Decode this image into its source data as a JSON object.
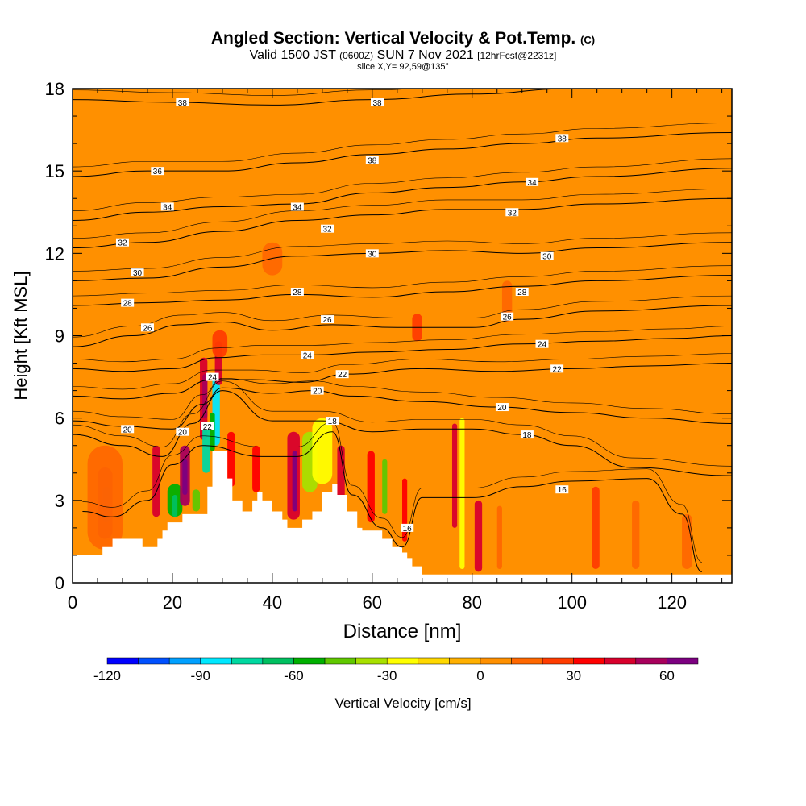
{
  "header": {
    "title": "Angled Section: Vertical Velocity & Pot.Temp.",
    "title_unit": "(C)",
    "subtitle_prefix": "Valid 1500 JST",
    "subtitle_utc": "(0600Z)",
    "subtitle_date": "SUN 7 Nov 2021",
    "subtitle_fcst": "[12hrFcst@2231z]",
    "slice": "slice X,Y= 92,59@135°"
  },
  "chart_data": {
    "type": "heatmap",
    "xlabel": "Distance [nm]",
    "ylabel": "Height [Kft MSL]",
    "xlim": [
      0,
      132
    ],
    "ylim": [
      0,
      18
    ],
    "x_ticks": [
      0,
      20,
      40,
      60,
      80,
      100,
      120
    ],
    "y_ticks": [
      0,
      3,
      6,
      9,
      12,
      15,
      18
    ],
    "terrain": [
      [
        0,
        1
      ],
      [
        5,
        1
      ],
      [
        6,
        1.3
      ],
      [
        8,
        1.6
      ],
      [
        13,
        1.6
      ],
      [
        14,
        1.3
      ],
      [
        16,
        1.3
      ],
      [
        17,
        1.6
      ],
      [
        18,
        1.9
      ],
      [
        19,
        2.2
      ],
      [
        21,
        2.2
      ],
      [
        22,
        2.5
      ],
      [
        26,
        2.5
      ],
      [
        27,
        3.5
      ],
      [
        28,
        4.8
      ],
      [
        30,
        4.8
      ],
      [
        31,
        3.8
      ],
      [
        32,
        3.0
      ],
      [
        34,
        2.6
      ],
      [
        36,
        3.0
      ],
      [
        37,
        3.3
      ],
      [
        38,
        3.0
      ],
      [
        40,
        2.6
      ],
      [
        42,
        2.3
      ],
      [
        43,
        2.0
      ],
      [
        45,
        2.0
      ],
      [
        46,
        2.3
      ],
      [
        48,
        2.6
      ],
      [
        50,
        3.3
      ],
      [
        52,
        3.6
      ],
      [
        53,
        3.2
      ],
      [
        55,
        2.6
      ],
      [
        57,
        2.0
      ],
      [
        58,
        1.9
      ],
      [
        61,
        1.9
      ],
      [
        62,
        1.6
      ],
      [
        64,
        1.3
      ],
      [
        66,
        1.1
      ],
      [
        67,
        0.9
      ],
      [
        68,
        0.6
      ],
      [
        70,
        0.3
      ],
      [
        72,
        0.3
      ],
      [
        132,
        0.3
      ]
    ],
    "contour_label": "Pot.Temp.",
    "contours": [
      {
        "level": 16,
        "points": [
          [
            2,
            2.6
          ],
          [
            8,
            2.4
          ],
          [
            15,
            3.0
          ],
          [
            20,
            4.3
          ],
          [
            26,
            5.0
          ],
          [
            38,
            4.6
          ],
          [
            45,
            4.6
          ],
          [
            52,
            5.5
          ],
          [
            56,
            3.2
          ],
          [
            62,
            2.0
          ],
          [
            66,
            1.3
          ],
          [
            70,
            3.1
          ],
          [
            80,
            3.1
          ],
          [
            90,
            3.5
          ],
          [
            100,
            3.7
          ],
          [
            115,
            3.8
          ],
          [
            122,
            2.5
          ],
          [
            126,
            0.4
          ]
        ]
      },
      {
        "level": 18,
        "points": [
          [
            0,
            5.4
          ],
          [
            10,
            5.0
          ],
          [
            18,
            4.6
          ],
          [
            24,
            5.8
          ],
          [
            30,
            7.0
          ],
          [
            40,
            5.9
          ],
          [
            50,
            5.9
          ],
          [
            60,
            5.5
          ],
          [
            70,
            5.6
          ],
          [
            80,
            5.6
          ],
          [
            90,
            5.4
          ],
          [
            100,
            5.0
          ],
          [
            112,
            4.2
          ],
          [
            132,
            3.9
          ]
        ]
      },
      {
        "level": 20,
        "points": [
          [
            0,
            5.9
          ],
          [
            10,
            5.7
          ],
          [
            20,
            5.6
          ],
          [
            26,
            6.5
          ],
          [
            30,
            7.1
          ],
          [
            40,
            6.9
          ],
          [
            48,
            7.0
          ],
          [
            56,
            6.8
          ],
          [
            70,
            6.6
          ],
          [
            85,
            6.4
          ],
          [
            100,
            6.2
          ],
          [
            115,
            6.0
          ],
          [
            132,
            5.8
          ]
        ]
      },
      {
        "level": 22,
        "points": [
          [
            0,
            6.8
          ],
          [
            10,
            6.7
          ],
          [
            20,
            6.9
          ],
          [
            28,
            7.4
          ],
          [
            36,
            7.4
          ],
          [
            46,
            7.3
          ],
          [
            55,
            7.6
          ],
          [
            70,
            7.8
          ],
          [
            85,
            7.7
          ],
          [
            100,
            7.8
          ],
          [
            115,
            7.9
          ],
          [
            132,
            8.0
          ]
        ]
      },
      {
        "level": 24,
        "points": [
          [
            0,
            7.8
          ],
          [
            10,
            7.7
          ],
          [
            20,
            7.8
          ],
          [
            29,
            8.2
          ],
          [
            38,
            8.3
          ],
          [
            48,
            8.3
          ],
          [
            60,
            8.4
          ],
          [
            75,
            8.5
          ],
          [
            90,
            8.7
          ],
          [
            105,
            8.8
          ],
          [
            120,
            8.9
          ],
          [
            132,
            9.0
          ]
        ]
      },
      {
        "level": 26,
        "points": [
          [
            0,
            8.6
          ],
          [
            12,
            9.0
          ],
          [
            22,
            9.4
          ],
          [
            30,
            9.5
          ],
          [
            40,
            9.2
          ],
          [
            52,
            9.4
          ],
          [
            65,
            9.3
          ],
          [
            80,
            9.3
          ],
          [
            90,
            9.6
          ],
          [
            105,
            9.9
          ],
          [
            132,
            10.1
          ]
        ]
      },
      {
        "level": 28,
        "points": [
          [
            0,
            10.1
          ],
          [
            15,
            10.2
          ],
          [
            30,
            10.3
          ],
          [
            45,
            10.5
          ],
          [
            60,
            10.4
          ],
          [
            75,
            10.6
          ],
          [
            90,
            10.8
          ],
          [
            105,
            11.0
          ],
          [
            132,
            11.2
          ]
        ]
      },
      {
        "level": 30,
        "points": [
          [
            0,
            11.0
          ],
          [
            15,
            11.1
          ],
          [
            30,
            11.5
          ],
          [
            45,
            11.9
          ],
          [
            60,
            12.0
          ],
          [
            75,
            12.1
          ],
          [
            90,
            12.0
          ],
          [
            105,
            12.2
          ],
          [
            132,
            12.4
          ]
        ]
      },
      {
        "level": 32,
        "points": [
          [
            0,
            12.2
          ],
          [
            15,
            12.4
          ],
          [
            30,
            12.8
          ],
          [
            45,
            13.2
          ],
          [
            60,
            13.4
          ],
          [
            75,
            13.6
          ],
          [
            90,
            13.6
          ],
          [
            105,
            13.8
          ],
          [
            132,
            14.0
          ]
        ]
      },
      {
        "level": 34,
        "points": [
          [
            0,
            13.2
          ],
          [
            15,
            13.5
          ],
          [
            30,
            13.7
          ],
          [
            45,
            13.8
          ],
          [
            60,
            14.2
          ],
          [
            75,
            14.4
          ],
          [
            90,
            14.6
          ],
          [
            105,
            14.8
          ],
          [
            132,
            15.1
          ]
        ]
      },
      {
        "level": 36,
        "points": [
          [
            0,
            14.8
          ],
          [
            15,
            15.0
          ],
          [
            30,
            15.0
          ],
          [
            45,
            15.3
          ],
          [
            60,
            15.6
          ],
          [
            75,
            15.8
          ],
          [
            90,
            16.0
          ],
          [
            105,
            16.2
          ],
          [
            132,
            16.4
          ]
        ]
      },
      {
        "level": 38,
        "points": [
          [
            0,
            17.6
          ],
          [
            20,
            17.5
          ],
          [
            40,
            17.4
          ],
          [
            60,
            17.6
          ],
          [
            80,
            17.8
          ],
          [
            100,
            18.0
          ],
          [
            120,
            18.0
          ],
          [
            132,
            18.0
          ]
        ]
      }
    ],
    "contour_labels": [
      {
        "text": "38",
        "x": 22,
        "y": 17.5
      },
      {
        "text": "38",
        "x": 61,
        "y": 17.5
      },
      {
        "text": "38",
        "x": 98,
        "y": 16.2
      },
      {
        "text": "36",
        "x": 17,
        "y": 15.0
      },
      {
        "text": "38",
        "x": 60,
        "y": 15.4
      },
      {
        "text": "34",
        "x": 92,
        "y": 14.6
      },
      {
        "text": "34",
        "x": 19,
        "y": 13.7
      },
      {
        "text": "34",
        "x": 45,
        "y": 13.7
      },
      {
        "text": "32",
        "x": 88,
        "y": 13.5
      },
      {
        "text": "32",
        "x": 10,
        "y": 12.4
      },
      {
        "text": "32",
        "x": 51,
        "y": 12.9
      },
      {
        "text": "30",
        "x": 60,
        "y": 12.0
      },
      {
        "text": "30",
        "x": 95,
        "y": 11.9
      },
      {
        "text": "30",
        "x": 13,
        "y": 11.3
      },
      {
        "text": "28",
        "x": 45,
        "y": 10.6
      },
      {
        "text": "28",
        "x": 90,
        "y": 10.6
      },
      {
        "text": "28",
        "x": 11,
        "y": 10.2
      },
      {
        "text": "26",
        "x": 87,
        "y": 9.7
      },
      {
        "text": "26",
        "x": 15,
        "y": 9.3
      },
      {
        "text": "26",
        "x": 51,
        "y": 9.6
      },
      {
        "text": "24",
        "x": 94,
        "y": 8.7
      },
      {
        "text": "24",
        "x": 47,
        "y": 8.3
      },
      {
        "text": "22",
        "x": 97,
        "y": 7.8
      },
      {
        "text": "24",
        "x": 28,
        "y": 7.5
      },
      {
        "text": "22",
        "x": 54,
        "y": 7.6
      },
      {
        "text": "20",
        "x": 49,
        "y": 7.0
      },
      {
        "text": "20",
        "x": 86,
        "y": 6.4
      },
      {
        "text": "20",
        "x": 11,
        "y": 5.6
      },
      {
        "text": "18",
        "x": 52,
        "y": 5.9
      },
      {
        "text": "18",
        "x": 91,
        "y": 5.4
      },
      {
        "text": "20",
        "x": 22,
        "y": 5.5
      },
      {
        "text": "22",
        "x": 27,
        "y": 5.7
      },
      {
        "text": "16",
        "x": 98,
        "y": 3.4
      },
      {
        "text": "16",
        "x": 67,
        "y": 2.0
      }
    ],
    "velocity_cells": [
      {
        "x": [
          5,
          8
        ],
        "y": [
          1.6,
          4.2
        ],
        "v": 45
      },
      {
        "x": [
          6,
          7.5
        ],
        "y": [
          2.2,
          3.5
        ],
        "v": 55
      },
      {
        "x": [
          3,
          10
        ],
        "y": [
          1.2,
          5.0
        ],
        "v": 15
      },
      {
        "x": [
          16,
          17.5
        ],
        "y": [
          2.4,
          5.0
        ],
        "v": 40
      },
      {
        "x": [
          19,
          22
        ],
        "y": [
          2.4,
          3.6
        ],
        "v": -55
      },
      {
        "x": [
          20,
          21
        ],
        "y": [
          2.4,
          3.2
        ],
        "v": -70
      },
      {
        "x": [
          21.5,
          23.5
        ],
        "y": [
          2.8,
          5.0
        ],
        "v": 55
      },
      {
        "x": [
          22,
          23
        ],
        "y": [
          3.2,
          4.5
        ],
        "v": 65
      },
      {
        "x": [
          24,
          25.5
        ],
        "y": [
          2.6,
          3.4
        ],
        "v": -50
      },
      {
        "x": [
          25.5,
          27
        ],
        "y": [
          5.2,
          8.2
        ],
        "v": 40
      },
      {
        "x": [
          26,
          27
        ],
        "y": [
          6.0,
          7.6
        ],
        "v": 55
      },
      {
        "x": [
          26,
          27.5
        ],
        "y": [
          4.0,
          5.8
        ],
        "v": -75
      },
      {
        "x": [
          28,
          29.5
        ],
        "y": [
          5.0,
          7.5
        ],
        "v": -90
      },
      {
        "x": [
          27.5,
          28.5
        ],
        "y": [
          4.8,
          6.2
        ],
        "v": -60
      },
      {
        "x": [
          28.5,
          30
        ],
        "y": [
          7.2,
          8.8
        ],
        "v": 40
      },
      {
        "x": [
          31,
          32.5
        ],
        "y": [
          3.5,
          5.5
        ],
        "v": 30
      },
      {
        "x": [
          36,
          37.5
        ],
        "y": [
          3.3,
          5.0
        ],
        "v": 35
      },
      {
        "x": [
          43,
          45.5
        ],
        "y": [
          2.3,
          5.5
        ],
        "v": 45
      },
      {
        "x": [
          44,
          45
        ],
        "y": [
          2.6,
          4.8
        ],
        "v": 65
      },
      {
        "x": [
          46,
          49
        ],
        "y": [
          3.3,
          5.5
        ],
        "v": -40
      },
      {
        "x": [
          48,
          52
        ],
        "y": [
          3.6,
          6.0
        ],
        "v": -30
      },
      {
        "x": [
          53,
          54.5
        ],
        "y": [
          2.6,
          5.0
        ],
        "v": 40
      },
      {
        "x": [
          59,
          60.5
        ],
        "y": [
          2.2,
          4.8
        ],
        "v": 35
      },
      {
        "x": [
          62,
          63
        ],
        "y": [
          2.5,
          4.5
        ],
        "v": -45
      },
      {
        "x": [
          66,
          67
        ],
        "y": [
          1.5,
          3.8
        ],
        "v": 30
      },
      {
        "x": [
          76,
          77
        ],
        "y": [
          2.0,
          5.8
        ],
        "v": 40
      },
      {
        "x": [
          77.5,
          78.5
        ],
        "y": [
          0.5,
          6.0
        ],
        "v": -30
      },
      {
        "x": [
          80.5,
          82
        ],
        "y": [
          0.4,
          3.0
        ],
        "v": 45
      },
      {
        "x": [
          85,
          86
        ],
        "y": [
          0.5,
          2.8
        ],
        "v": 15
      },
      {
        "x": [
          104,
          105.5
        ],
        "y": [
          0.5,
          3.5
        ],
        "v": 20
      },
      {
        "x": [
          112,
          113.5
        ],
        "y": [
          0.5,
          3.0
        ],
        "v": 15
      },
      {
        "x": [
          122,
          124
        ],
        "y": [
          0.5,
          2.5
        ],
        "v": 15
      },
      {
        "x": [
          68,
          70
        ],
        "y": [
          8.8,
          9.8
        ],
        "v": 20
      },
      {
        "x": [
          86,
          88
        ],
        "y": [
          9.5,
          11.0
        ],
        "v": 15
      },
      {
        "x": [
          38,
          42
        ],
        "y": [
          11.2,
          12.4
        ],
        "v": 15
      },
      {
        "x": [
          28,
          31
        ],
        "y": [
          8.2,
          9.2
        ],
        "v": 20
      }
    ],
    "colorbar": {
      "label": "Vertical Velocity [cm/s]",
      "range": [
        -120,
        70
      ],
      "ticks": [
        -120,
        -90,
        -60,
        -30,
        0,
        30,
        60
      ],
      "colors": [
        "#0000ff",
        "#0050ff",
        "#00a0ff",
        "#00e8ff",
        "#00d8a0",
        "#00c060",
        "#00b000",
        "#60c800",
        "#a8e000",
        "#ffff00",
        "#ffd800",
        "#ffb000",
        "#ff9000",
        "#ff6800",
        "#ff3c00",
        "#ff0000",
        "#d8002c",
        "#a8005c",
        "#7c0080"
      ]
    }
  }
}
